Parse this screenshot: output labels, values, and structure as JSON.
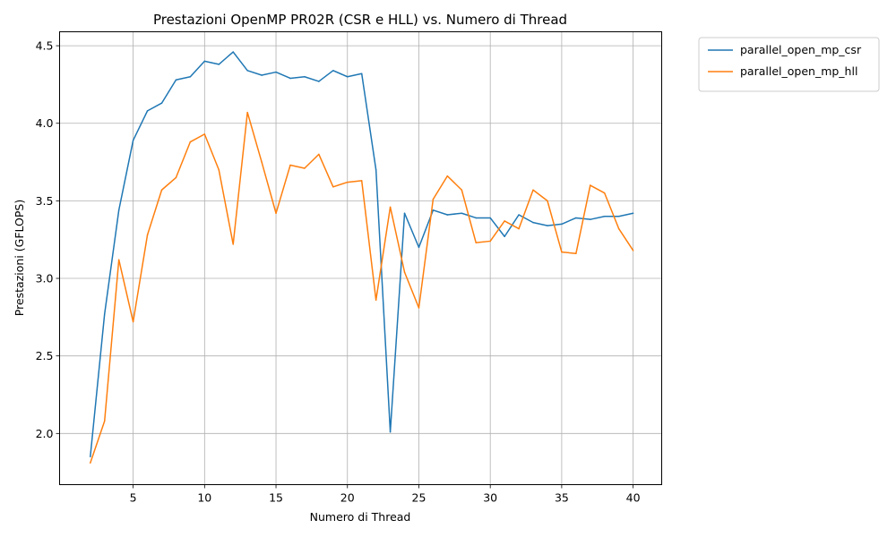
{
  "chart_data": {
    "type": "line",
    "title": "Prestazioni OpenMP PR02R (CSR e HLL) vs. Numero di Thread",
    "xlabel": "Numero di Thread",
    "ylabel": "Prestazioni (GFLOPS)",
    "xlim": [
      -0.15,
      42
    ],
    "ylim": [
      1.67,
      4.59
    ],
    "xticks": [
      5,
      10,
      15,
      20,
      25,
      30,
      35,
      40
    ],
    "xtick_labels": [
      "5",
      "10",
      "15",
      "20",
      "25",
      "30",
      "35",
      "40"
    ],
    "yticks": [
      2.0,
      2.5,
      3.0,
      3.5,
      4.0,
      4.5
    ],
    "ytick_labels": [
      "2.0",
      "2.5",
      "3.0",
      "3.5",
      "4.0",
      "4.5"
    ],
    "grid": true,
    "legend_position": "outside-top-right",
    "x": [
      2,
      3,
      4,
      5,
      6,
      7,
      8,
      9,
      10,
      11,
      12,
      13,
      14,
      15,
      16,
      17,
      18,
      19,
      20,
      21,
      22,
      23,
      24,
      25,
      26,
      27,
      28,
      29,
      30,
      31,
      32,
      33,
      34,
      35,
      36,
      37,
      38,
      39,
      40
    ],
    "series": [
      {
        "name": "parallel_open_mp_csr",
        "color": "#1f77b4",
        "values": [
          1.85,
          2.77,
          3.44,
          3.89,
          4.08,
          4.13,
          4.28,
          4.3,
          4.4,
          4.38,
          4.46,
          4.34,
          4.31,
          4.33,
          4.29,
          4.3,
          4.27,
          4.34,
          4.3,
          4.32,
          3.7,
          2.01,
          3.42,
          3.2,
          3.44,
          3.41,
          3.42,
          3.39,
          3.39,
          3.27,
          3.41,
          3.36,
          3.34,
          3.35,
          3.39,
          3.38,
          3.4,
          3.4,
          3.42
        ]
      },
      {
        "name": "parallel_open_mp_hll",
        "color": "#ff7f0e",
        "values": [
          1.81,
          2.08,
          3.12,
          2.72,
          3.28,
          3.57,
          3.65,
          3.88,
          3.93,
          3.7,
          3.22,
          4.07,
          3.75,
          3.42,
          3.73,
          3.71,
          3.8,
          3.59,
          3.62,
          3.63,
          2.86,
          3.46,
          3.04,
          2.81,
          3.51,
          3.66,
          3.57,
          3.23,
          3.24,
          3.37,
          3.32,
          3.57,
          3.5,
          3.17,
          3.16,
          3.6,
          3.55,
          3.32,
          3.18
        ]
      }
    ]
  }
}
